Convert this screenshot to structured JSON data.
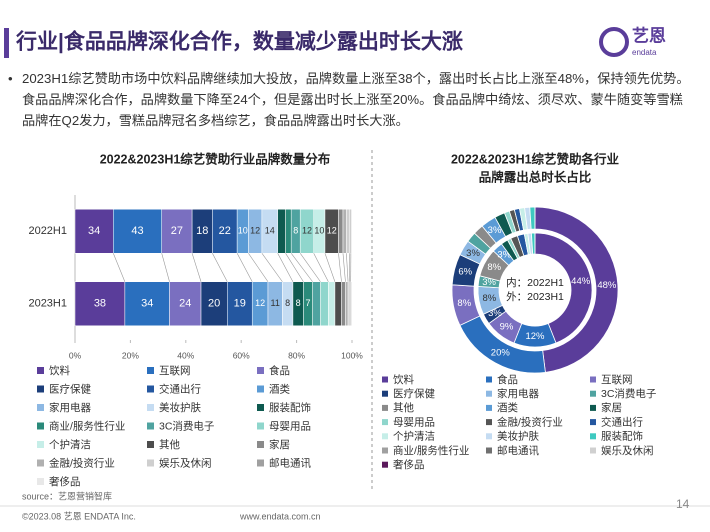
{
  "header": {
    "title": "行业|食品品牌深化合作，数量减少露出时长大涨",
    "logo": "艺恩",
    "logo_sub": "endata"
  },
  "bullets": [
    "2023H1综艺赞助市场中饮料品牌继续加大投放，品牌数量上涨至38个，露出时长占比上涨至48%，保持领先优势。食品品牌深化合作，品牌数量下降至24个，但是露出时长上涨至20%。食品品牌中绮炫、须尽欢、蒙牛随变等雪糕品牌在Q2发力，雪糕品牌冠名多档综艺，食品品牌露出时长大涨。"
  ],
  "chart_data": [
    {
      "type": "stacked-percent-bar",
      "title": "2022&2023H1综艺赞助行业品牌数量分布",
      "categories": [
        "2022H1",
        "2023H1"
      ],
      "xlim": [
        0,
        100
      ],
      "xticks": [
        {
          "value": 0,
          "label": "0%"
        },
        {
          "value": 20,
          "label": "20%"
        },
        {
          "value": 40,
          "label": "40%"
        },
        {
          "value": 60,
          "label": "60%"
        },
        {
          "value": 80,
          "label": "80%"
        },
        {
          "value": 100,
          "label": "100%"
        }
      ],
      "series": [
        {
          "name": "饮料",
          "color": "#5a3d9a",
          "values": [
            34,
            38
          ]
        },
        {
          "name": "互联网",
          "color": "#2a6fbe",
          "values": [
            43,
            34
          ]
        },
        {
          "name": "食品",
          "color": "#7a6fc0",
          "values": [
            27,
            24
          ]
        },
        {
          "name": "医疗保健",
          "color": "#1c3e7a",
          "values": [
            18,
            20
          ]
        },
        {
          "name": "交通出行",
          "color": "#2457a0",
          "values": [
            22,
            19
          ]
        },
        {
          "name": "酒类",
          "color": "#5b9bd5",
          "values": [
            10,
            12
          ]
        },
        {
          "name": "家用电器",
          "color": "#8db8e3",
          "values": [
            12,
            11
          ]
        },
        {
          "name": "美妆护肤",
          "color": "#c5dcf2",
          "values": [
            14,
            8
          ]
        },
        {
          "name": "服装配饰",
          "color": "#0e5a50",
          "values": [
            7,
            8
          ]
        },
        {
          "name": "商业/服务性行业",
          "color": "#2a8a7a",
          "values": [
            5,
            7
          ]
        },
        {
          "name": "3C消费电子",
          "color": "#4fa3a0",
          "values": [
            8,
            6
          ]
        },
        {
          "name": "母婴用品",
          "color": "#8fd6cc",
          "values": [
            12,
            6
          ]
        },
        {
          "name": "个护清洁",
          "color": "#c6eee8",
          "values": [
            10,
            5
          ]
        },
        {
          "name": "其他",
          "color": "#4d4d4d",
          "values": [
            12,
            5
          ]
        },
        {
          "name": "家居",
          "color": "#8a8a8a",
          "values": [
            4,
            3
          ]
        },
        {
          "name": "金融/投资行业",
          "color": "#b0b0b0",
          "values": [
            3,
            2
          ]
        },
        {
          "name": "娱乐及休闲",
          "color": "#cfcfcf",
          "values": [
            3,
            1
          ]
        },
        {
          "name": "邮电通讯",
          "color": "#a0a0a0",
          "values": [
            1,
            1
          ]
        },
        {
          "name": "奢侈品",
          "color": "#e8e8e8",
          "values": [
            1,
            1
          ]
        }
      ]
    },
    {
      "type": "donut",
      "title": [
        "2022&2023H1综艺赞助各行业",
        "品牌露出总时长占比"
      ],
      "categories": [
        "饮料",
        "食品",
        "互联网",
        "医疗保健",
        "家用电器",
        "3C消费电子",
        "其他",
        "酒类",
        "家居",
        "母婴用品",
        "金融/投资行业",
        "交通出行",
        "个护清洁",
        "美妆护肤",
        "服装配饰",
        "商业/服务性行业",
        "邮电通讯",
        "娱乐及休闲",
        "奢侈品"
      ],
      "colors": [
        "#5a3d9a",
        "#2a6fbe",
        "#7a6fc0",
        "#1c3e7a",
        "#8db8e3",
        "#4fa3a0",
        "#8a8a8a",
        "#5b9bd5",
        "#0e5a50",
        "#8fd6cc",
        "#555555",
        "#2457a0",
        "#c6eee8",
        "#c5dcf2",
        "#3ec9c0",
        "#a0a0a0",
        "#707070",
        "#d0d0d0",
        "#5b1a5c"
      ],
      "series": [
        {
          "name": "内：2022H1",
          "values": [
            44,
            12,
            9,
            3,
            8,
            3,
            8,
            3,
            2,
            1,
            2,
            2,
            1,
            1,
            1,
            0,
            0,
            0,
            0
          ],
          "value_labels": [
            "44%",
            "12%",
            "9%",
            "3%",
            "8%",
            "3%",
            "8%",
            "3%",
            null,
            null,
            null,
            null,
            null,
            null,
            null,
            null,
            null,
            null,
            null
          ]
        },
        {
          "name": "外：2023H1",
          "values": [
            48,
            20,
            8,
            6,
            3,
            2,
            2,
            3,
            2,
            1,
            1,
            1,
            1,
            1,
            1,
            0,
            0,
            0,
            0
          ],
          "value_labels": [
            "48%",
            "20%",
            "8%",
            "6%",
            "3%",
            null,
            null,
            "3%",
            null,
            null,
            null,
            null,
            null,
            null,
            null,
            null,
            null,
            null,
            null
          ]
        }
      ]
    }
  ],
  "footer": {
    "source": "source：艺恩营销智库",
    "copyright": "©2023.08 艺恩 ENDATA Inc.",
    "url": "www.endata.com.cn",
    "page": "14"
  }
}
